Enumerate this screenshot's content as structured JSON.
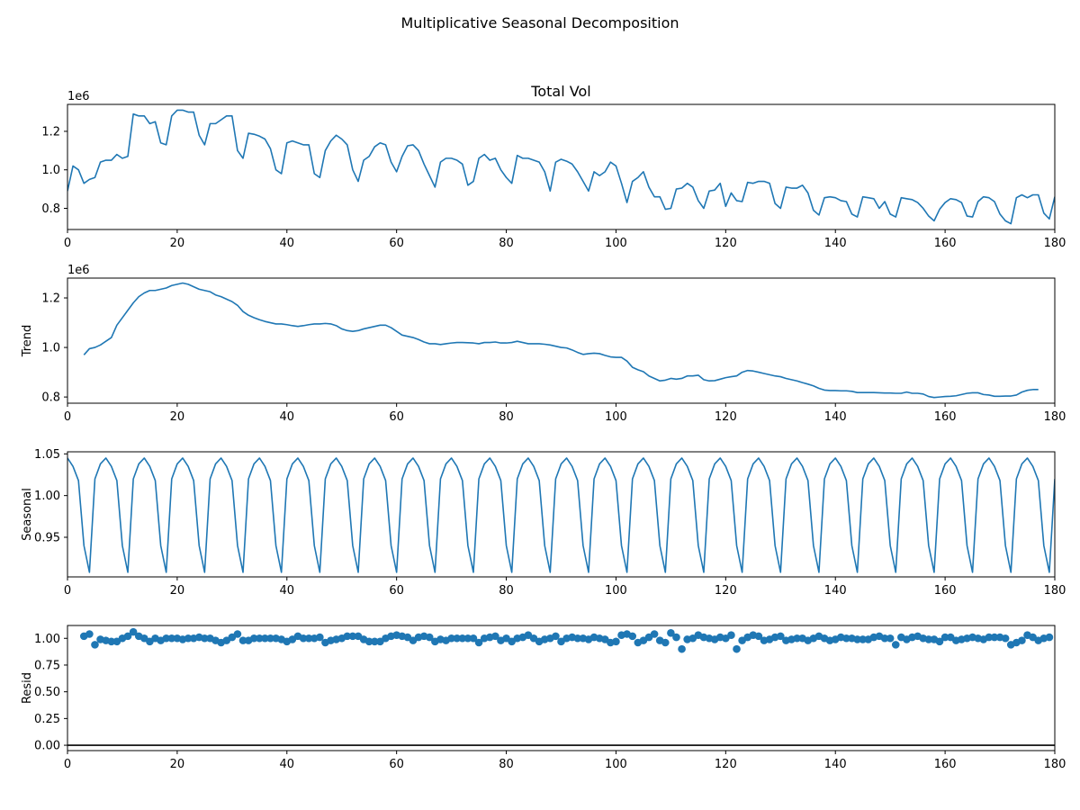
{
  "figure": {
    "suptitle": "Multiplicative Seasonal Decomposition"
  },
  "colors": {
    "series": "#1f77b4",
    "axis": "#000000",
    "zero_line": "#000000"
  },
  "chart_data": [
    {
      "id": "observed",
      "type": "line",
      "title": "Total Vol",
      "ylabel": "",
      "offset_label": "1e6",
      "scale": 1000000,
      "xlim": [
        0,
        180
      ],
      "ylim": [
        690000,
        1340000
      ],
      "xticks": [
        0,
        20,
        40,
        60,
        80,
        100,
        120,
        140,
        160,
        180
      ],
      "yticks": [
        800000,
        1000000,
        1200000
      ],
      "ytick_labels": [
        "0.8",
        "1.0",
        "1.2"
      ],
      "grid": false,
      "series": [
        {
          "values": [
            890000,
            1020000,
            1000000,
            930000,
            950000,
            960000,
            1040000,
            1050000,
            1050000,
            1080000,
            1060000,
            1070000,
            1290000,
            1280000,
            1280000,
            1240000,
            1250000,
            1140000,
            1130000,
            1280000,
            1310000,
            1310000,
            1300000,
            1300000,
            1180000,
            1130000,
            1240000,
            1240000,
            1260000,
            1280000,
            1280000,
            1100000,
            1060000,
            1190000,
            1185000,
            1175000,
            1160000,
            1110000,
            1000000,
            980000,
            1140000,
            1150000,
            1140000,
            1130000,
            1130000,
            980000,
            960000,
            1100000,
            1150000,
            1180000,
            1160000,
            1130000,
            1000000,
            940000,
            1050000,
            1070000,
            1120000,
            1140000,
            1130000,
            1040000,
            990000,
            1070000,
            1125000,
            1130000,
            1100000,
            1030000,
            970000,
            910000,
            1040000,
            1060000,
            1060000,
            1050000,
            1030000,
            920000,
            940000,
            1060000,
            1080000,
            1050000,
            1060000,
            1000000,
            960000,
            930000,
            1075000,
            1060000,
            1060000,
            1050000,
            1040000,
            990000,
            890000,
            1040000,
            1055000,
            1045000,
            1030000,
            990000,
            940000,
            890000,
            990000,
            970000,
            990000,
            1040000,
            1020000,
            930000,
            830000,
            940000,
            960000,
            990000,
            910000,
            860000,
            860000,
            795000,
            800000,
            900000,
            905000,
            930000,
            910000,
            840000,
            800000,
            890000,
            895000,
            930000,
            810000,
            880000,
            840000,
            835000,
            935000,
            930000,
            940000,
            940000,
            930000,
            825000,
            800000,
            910000,
            905000,
            905000,
            920000,
            880000,
            790000,
            765000,
            855000,
            860000,
            855000,
            840000,
            835000,
            770000,
            755000,
            860000,
            855000,
            850000,
            800000,
            835000,
            770000,
            755000,
            855000,
            850000,
            845000,
            830000,
            800000,
            760000,
            735000,
            795000,
            830000,
            850000,
            845000,
            830000,
            760000,
            755000,
            835000,
            860000,
            855000,
            835000,
            770000,
            735000,
            720000,
            855000,
            870000,
            855000,
            870000,
            870000,
            775000,
            745000,
            860000
          ]
        }
      ]
    },
    {
      "id": "trend",
      "type": "line",
      "title": "",
      "ylabel": "Trend",
      "offset_label": "1e6",
      "scale": 1000000,
      "xlim": [
        0,
        180
      ],
      "ylim": [
        775000,
        1280000
      ],
      "xticks": [
        0,
        20,
        40,
        60,
        80,
        100,
        120,
        140,
        160,
        180
      ],
      "yticks": [
        800000,
        1000000,
        1200000
      ],
      "ytick_labels": [
        "0.8",
        "1.0",
        "1.2"
      ],
      "grid": false,
      "x_start": 3,
      "series": [
        {
          "values": [
            970000,
            995000,
            1000000,
            1010000,
            1025000,
            1040000,
            1090000,
            1120000,
            1150000,
            1180000,
            1205000,
            1220000,
            1230000,
            1230000,
            1235000,
            1240000,
            1250000,
            1255000,
            1260000,
            1255000,
            1245000,
            1235000,
            1230000,
            1225000,
            1212000,
            1205000,
            1195000,
            1185000,
            1170000,
            1145000,
            1130000,
            1120000,
            1112000,
            1105000,
            1100000,
            1095000,
            1095000,
            1092000,
            1088000,
            1085000,
            1088000,
            1092000,
            1095000,
            1095000,
            1097000,
            1095000,
            1088000,
            1075000,
            1068000,
            1065000,
            1068000,
            1075000,
            1080000,
            1085000,
            1090000,
            1090000,
            1080000,
            1065000,
            1050000,
            1045000,
            1040000,
            1032000,
            1022000,
            1015000,
            1015000,
            1012000,
            1015000,
            1018000,
            1020000,
            1020000,
            1019000,
            1018000,
            1015000,
            1020000,
            1020000,
            1022000,
            1018000,
            1018000,
            1020000,
            1025000,
            1020000,
            1015000,
            1015000,
            1015000,
            1013000,
            1010000,
            1005000,
            1000000,
            998000,
            990000,
            980000,
            972000,
            975000,
            977000,
            975000,
            968000,
            962000,
            960000,
            960000,
            945000,
            920000,
            910000,
            902000,
            885000,
            875000,
            865000,
            868000,
            875000,
            872000,
            875000,
            885000,
            885000,
            888000,
            870000,
            865000,
            866000,
            872000,
            878000,
            882000,
            885000,
            900000,
            907000,
            905000,
            900000,
            895000,
            890000,
            885000,
            882000,
            875000,
            870000,
            865000,
            858000,
            852000,
            845000,
            835000,
            828000,
            826000,
            826000,
            825000,
            825000,
            823000,
            818000,
            818000,
            818000,
            818000,
            817000,
            816000,
            816000,
            815000,
            815000,
            820000,
            815000,
            815000,
            812000,
            802000,
            798000,
            800000,
            802000,
            803000,
            805000,
            810000,
            815000,
            817000,
            817000,
            810000,
            808000,
            803000,
            803000,
            804000,
            804000,
            808000,
            820000,
            827000,
            830000,
            830000
          ]
        }
      ]
    },
    {
      "id": "seasonal",
      "type": "line",
      "title": "",
      "ylabel": "Seasonal",
      "offset_label": "",
      "scale": 1,
      "xlim": [
        0,
        180
      ],
      "ylim": [
        0.9025,
        1.0525
      ],
      "xticks": [
        0,
        20,
        40,
        60,
        80,
        100,
        120,
        140,
        160,
        180
      ],
      "yticks": [
        0.95,
        1.0,
        1.05
      ],
      "ytick_labels": [
        "0.95",
        "1.00",
        "1.05"
      ],
      "grid": false,
      "period": 7,
      "pattern": [
        1.045,
        1.035,
        1.018,
        0.94,
        0.908,
        1.02,
        1.038
      ],
      "length": 181
    },
    {
      "id": "resid",
      "type": "scatter",
      "title": "",
      "ylabel": "Resid",
      "offset_label": "",
      "scale": 1,
      "xlim": [
        0,
        180
      ],
      "ylim": [
        -0.05,
        1.12
      ],
      "xticks": [
        0,
        20,
        40,
        60,
        80,
        100,
        120,
        140,
        160,
        180
      ],
      "yticks": [
        0.0,
        0.25,
        0.5,
        0.75,
        1.0
      ],
      "ytick_labels": [
        "0.00",
        "0.25",
        "0.50",
        "0.75",
        "1.00"
      ],
      "grid": false,
      "zero_line": 0,
      "x_start": 3,
      "series": [
        {
          "values": [
            1.02,
            1.04,
            0.94,
            0.99,
            0.98,
            0.97,
            0.97,
            1.0,
            1.02,
            1.06,
            1.02,
            1.0,
            0.97,
            1.0,
            0.98,
            1.0,
            1.0,
            1.0,
            0.99,
            1.0,
            1.0,
            1.01,
            1.0,
            1.0,
            0.98,
            0.96,
            0.98,
            1.01,
            1.04,
            0.98,
            0.98,
            1.0,
            1.0,
            1.0,
            1.0,
            1.0,
            0.99,
            0.97,
            0.99,
            1.02,
            1.0,
            1.0,
            1.0,
            1.01,
            0.96,
            0.98,
            0.99,
            1.0,
            1.02,
            1.02,
            1.02,
            0.99,
            0.97,
            0.97,
            0.97,
            1.0,
            1.02,
            1.03,
            1.02,
            1.01,
            0.98,
            1.01,
            1.02,
            1.01,
            0.97,
            0.99,
            0.98,
            1.0,
            1.0,
            1.0,
            1.0,
            1.0,
            0.96,
            1.0,
            1.01,
            1.02,
            0.98,
            1.0,
            0.97,
            1.0,
            1.01,
            1.03,
            1.0,
            0.97,
            0.99,
            1.0,
            1.02,
            0.97,
            1.0,
            1.01,
            1.0,
            1.0,
            0.99,
            1.01,
            1.0,
            0.99,
            0.96,
            0.97,
            1.03,
            1.04,
            1.02,
            0.96,
            0.98,
            1.01,
            1.04,
            0.98,
            0.96,
            1.05,
            1.01,
            0.9,
            0.99,
            1.0,
            1.03,
            1.01,
            1.0,
            0.99,
            1.01,
            1.0,
            1.03,
            0.9,
            0.98,
            1.01,
            1.03,
            1.02,
            0.98,
            0.99,
            1.01,
            1.02,
            0.98,
            0.99,
            1.0,
            1.0,
            0.98,
            1.0,
            1.02,
            1.0,
            0.98,
            0.99,
            1.01,
            1.0,
            1.0,
            0.99,
            0.99,
            0.99,
            1.01,
            1.02,
            1.0,
            1.0,
            0.94,
            1.01,
            0.99,
            1.01,
            1.02,
            1.0,
            0.99,
            0.99,
            0.97,
            1.01,
            1.01,
            0.98,
            0.99,
            1.0,
            1.01,
            1.0,
            0.99,
            1.01,
            1.01,
            1.01,
            1.0,
            0.94,
            0.96,
            0.98,
            1.03,
            1.01,
            0.98,
            1.0,
            1.01
          ]
        }
      ]
    }
  ]
}
